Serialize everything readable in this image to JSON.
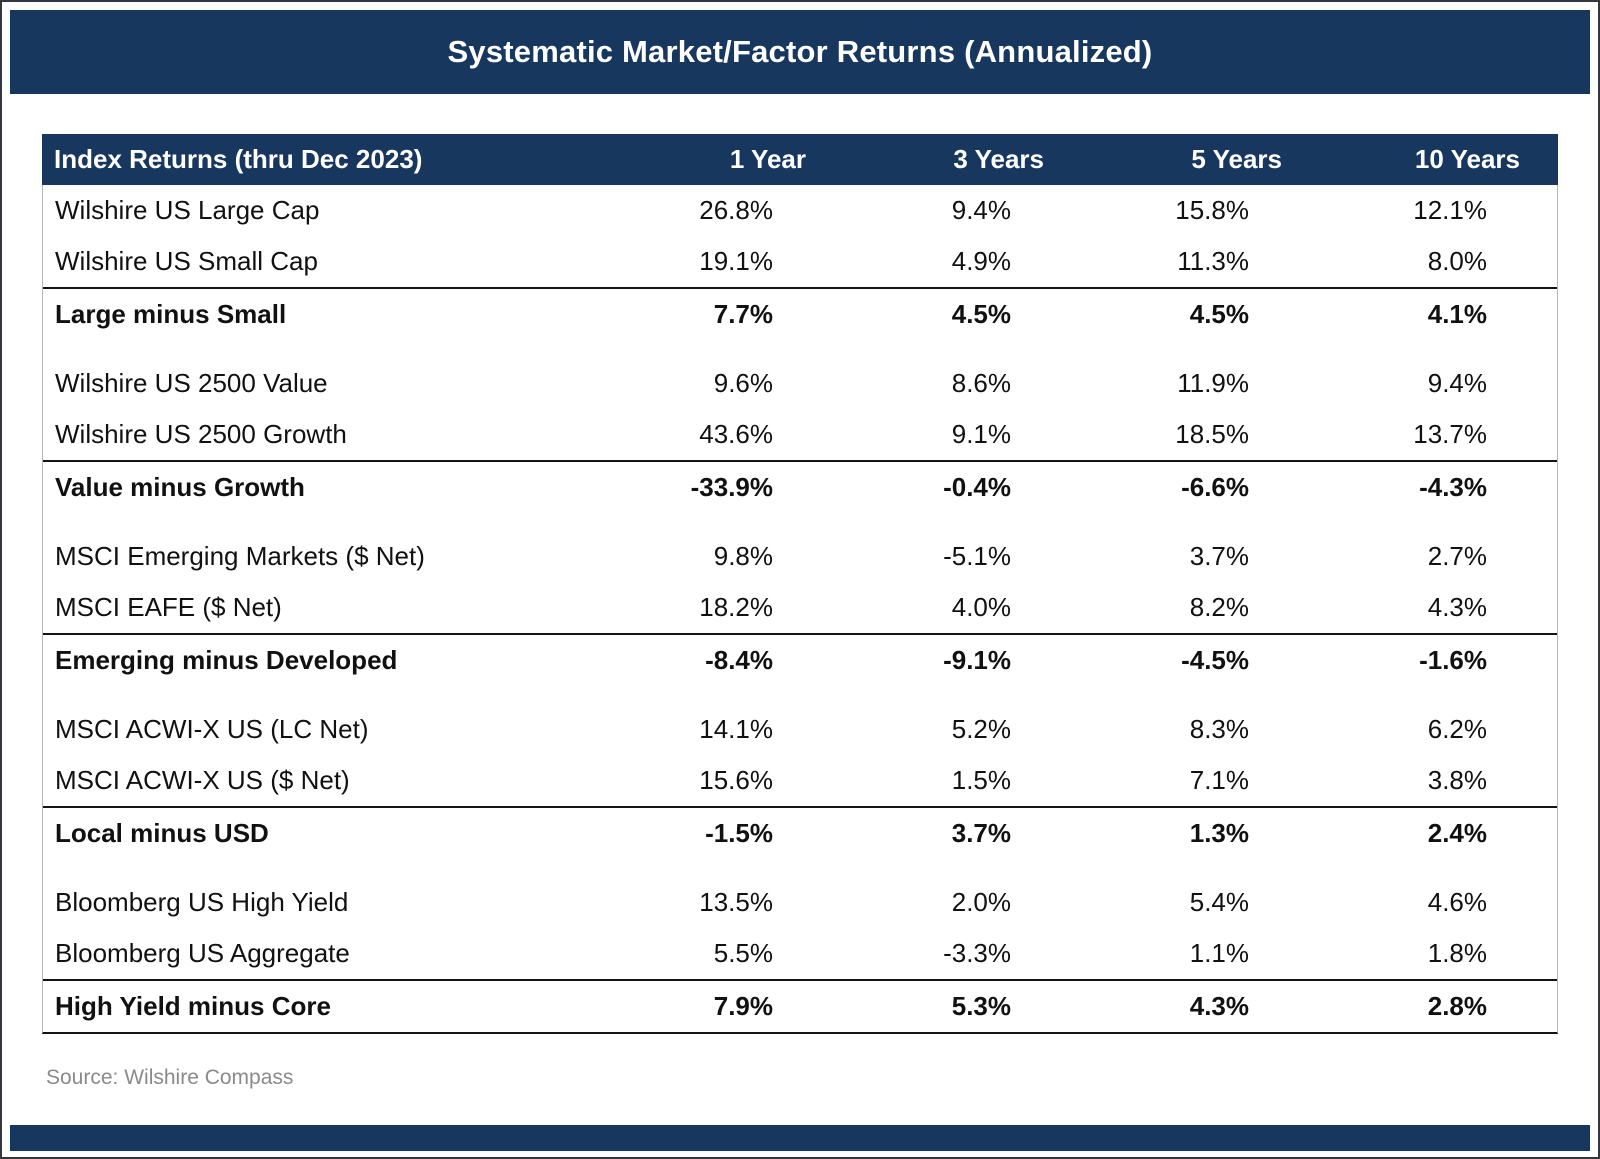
{
  "colors": {
    "navy": "#17375E",
    "rule_line": "#141414",
    "source_text": "#8a8a8a"
  },
  "title": "Systematic Market/Factor Returns (Annualized)",
  "table": {
    "header": {
      "label": "Index Returns (thru Dec 2023)",
      "cols": [
        "1 Year",
        "3 Years",
        "5 Years",
        "10 Years"
      ]
    },
    "rows": [
      {
        "label": "Wilshire US Large Cap",
        "bold": false,
        "values": [
          "26.8%",
          "9.4%",
          "15.8%",
          "12.1%"
        ]
      },
      {
        "label": "Wilshire US Small Cap",
        "bold": false,
        "values": [
          "19.1%",
          "4.9%",
          "11.3%",
          "8.0%"
        ]
      },
      {
        "label": "Large minus Small",
        "bold": true,
        "values": [
          "7.7%",
          "4.5%",
          "4.5%",
          "4.1%"
        ]
      },
      {
        "label": "Wilshire US 2500 Value",
        "bold": false,
        "values": [
          "9.6%",
          "8.6%",
          "11.9%",
          "9.4%"
        ]
      },
      {
        "label": "Wilshire US 2500 Growth",
        "bold": false,
        "values": [
          "43.6%",
          "9.1%",
          "18.5%",
          "13.7%"
        ]
      },
      {
        "label": "Value minus Growth",
        "bold": true,
        "values": [
          "-33.9%",
          "-0.4%",
          "-6.6%",
          "-4.3%"
        ]
      },
      {
        "label": "MSCI Emerging Markets ($ Net)",
        "bold": false,
        "values": [
          "9.8%",
          "-5.1%",
          "3.7%",
          "2.7%"
        ]
      },
      {
        "label": "MSCI EAFE ($ Net)",
        "bold": false,
        "values": [
          "18.2%",
          "4.0%",
          "8.2%",
          "4.3%"
        ]
      },
      {
        "label": "Emerging minus Developed",
        "bold": true,
        "values": [
          "-8.4%",
          "-9.1%",
          "-4.5%",
          "-1.6%"
        ]
      },
      {
        "label": "MSCI ACWI-X US (LC Net)",
        "bold": false,
        "values": [
          "14.1%",
          "5.2%",
          "8.3%",
          "6.2%"
        ]
      },
      {
        "label": "MSCI ACWI-X US ($ Net)",
        "bold": false,
        "values": [
          "15.6%",
          "1.5%",
          "7.1%",
          "3.8%"
        ]
      },
      {
        "label": "Local minus USD",
        "bold": true,
        "values": [
          "-1.5%",
          "3.7%",
          "1.3%",
          "2.4%"
        ]
      },
      {
        "label": "Bloomberg US High Yield",
        "bold": false,
        "values": [
          "13.5%",
          "2.0%",
          "5.4%",
          "4.6%"
        ]
      },
      {
        "label": "Bloomberg US Aggregate",
        "bold": false,
        "values": [
          "5.5%",
          "-3.3%",
          "1.1%",
          "1.8%"
        ]
      },
      {
        "label": "High Yield minus Core",
        "bold": true,
        "values": [
          "7.9%",
          "5.3%",
          "4.3%",
          "2.8%"
        ]
      }
    ]
  },
  "source": "Source: Wilshire Compass"
}
